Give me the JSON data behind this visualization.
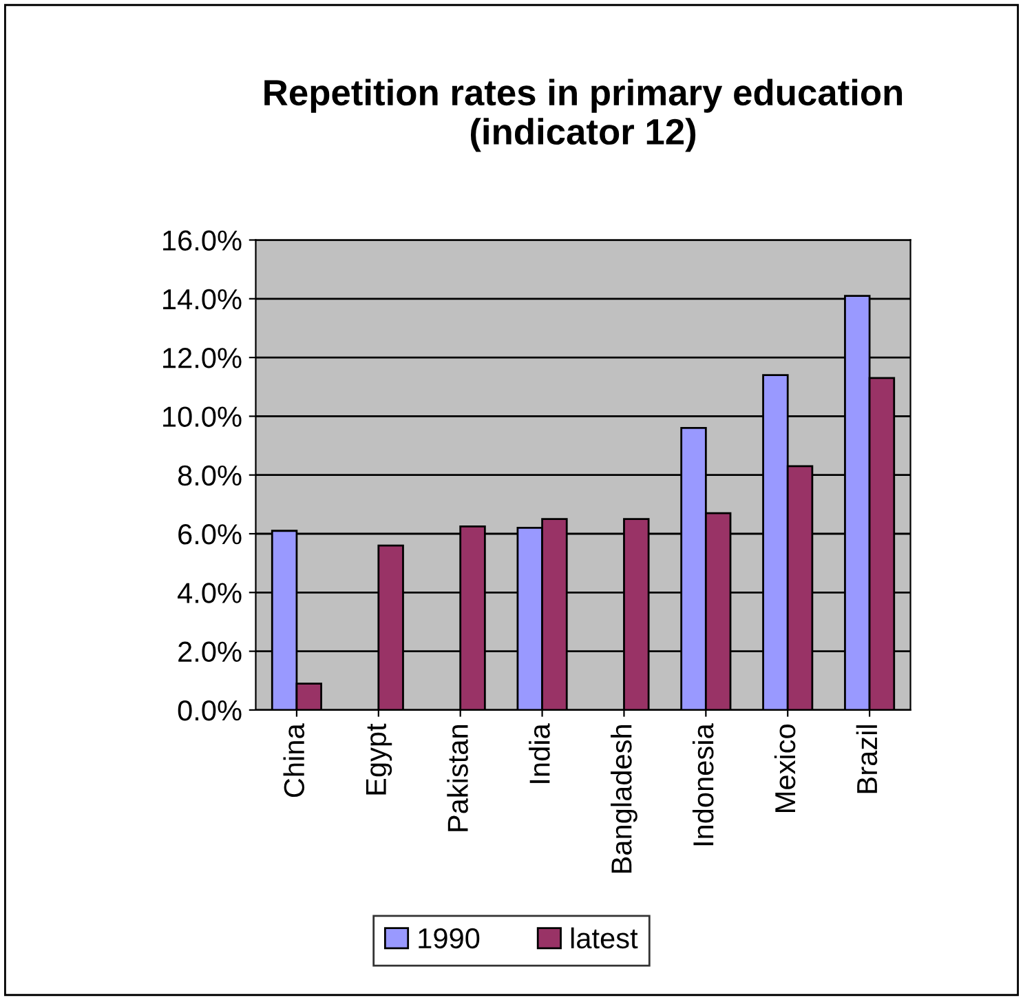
{
  "chart_data": {
    "type": "bar",
    "title": "Repetition rates in primary education\n(indicator 12)",
    "categories": [
      "China",
      "Egypt",
      "Pakistan",
      "India",
      "Bangladesh",
      "Indonesia",
      "Mexico",
      "Brazil"
    ],
    "series": [
      {
        "name": "1990",
        "color": "#9999ff",
        "values": [
          6.1,
          null,
          null,
          6.2,
          null,
          9.6,
          11.4,
          14.1
        ]
      },
      {
        "name": "latest",
        "color": "#993366",
        "values": [
          0.9,
          5.6,
          6.25,
          6.5,
          6.5,
          6.7,
          8.3,
          11.3
        ]
      }
    ],
    "ylim": [
      0,
      16
    ],
    "yticks": [
      {
        "value": 0,
        "label": "0.0%"
      },
      {
        "value": 2,
        "label": "2.0%"
      },
      {
        "value": 4,
        "label": "4.0%"
      },
      {
        "value": 6,
        "label": "6.0%"
      },
      {
        "value": 8,
        "label": "8.0%"
      },
      {
        "value": 10,
        "label": "10.0%"
      },
      {
        "value": 12,
        "label": "12.0%"
      },
      {
        "value": 14,
        "label": "14.0%"
      },
      {
        "value": 16,
        "label": "16.0%"
      }
    ],
    "grid": "y",
    "legend": "bottom"
  }
}
